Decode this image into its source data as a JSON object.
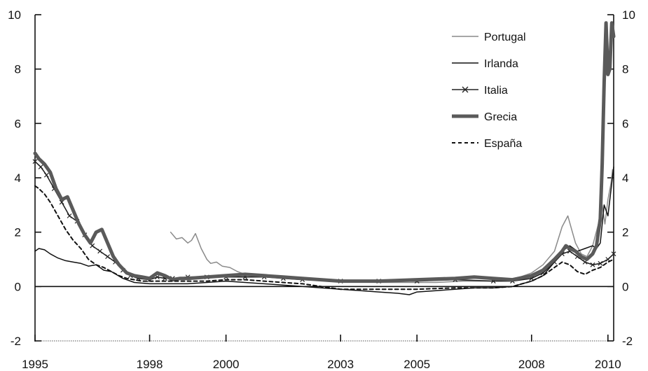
{
  "chart_data": {
    "type": "line",
    "title": "",
    "xlabel": "",
    "ylabel": "",
    "xlim": [
      1995.0,
      2010.15
    ],
    "ylim": [
      -2,
      10
    ],
    "grid": false,
    "legend_position": "top-right",
    "x_tick_values": [
      1995,
      1998,
      2000,
      2003,
      2005,
      2008,
      2010
    ],
    "x_tick_labels": [
      "1995",
      "1998",
      "2000",
      "2003",
      "2005",
      "2008",
      "2010"
    ],
    "y_ticks": [
      -2,
      0,
      2,
      4,
      6,
      8,
      10
    ],
    "y_tick_labels": [
      "-2",
      "0",
      "2",
      "4",
      "6",
      "8",
      "10"
    ],
    "series": [
      {
        "name": "Portugal",
        "color": "#8a8a8a",
        "style": "solid-thin",
        "x": [
          1998.55,
          1998.7,
          1998.85,
          1999.0,
          1999.1,
          1999.2,
          1999.35,
          1999.5,
          1999.6,
          1999.75,
          1999.9,
          2000.1,
          2000.3,
          2000.5,
          2000.8,
          2001.2,
          2001.8,
          2002.5,
          2003.2,
          2004.0,
          2004.8,
          2005.5,
          2006.2,
          2007.0,
          2007.6,
          2008.0,
          2008.3,
          2008.6,
          2008.8,
          2008.95,
          2009.05,
          2009.15,
          2009.3,
          2009.45,
          2009.6,
          2009.75,
          2009.85,
          2009.92,
          2010.0,
          2010.08,
          2010.12
        ],
        "y": [
          2.0,
          1.75,
          1.8,
          1.6,
          1.7,
          1.95,
          1.4,
          1.0,
          0.85,
          0.9,
          0.75,
          0.7,
          0.55,
          0.45,
          0.4,
          0.35,
          0.3,
          0.25,
          0.2,
          0.15,
          0.15,
          0.15,
          0.2,
          0.2,
          0.3,
          0.5,
          0.8,
          1.3,
          2.2,
          2.6,
          2.1,
          1.6,
          1.2,
          1.1,
          1.5,
          2.3,
          3.0,
          2.3,
          3.2,
          3.8,
          4.3
        ]
      },
      {
        "name": "Irlanda",
        "color": "#111111",
        "style": "solid-thin",
        "x": [
          1995.0,
          1995.1,
          1995.25,
          1995.4,
          1995.6,
          1995.8,
          1996.0,
          1996.2,
          1996.4,
          1996.6,
          1996.8,
          1997.0,
          1997.3,
          1997.6,
          1998.0,
          1998.5,
          1999.0,
          1999.5,
          2000.0,
          2000.5,
          2001.0,
          2002.0,
          2003.0,
          2004.0,
          2004.5,
          2004.8,
          2005.0,
          2005.5,
          2006.0,
          2006.5,
          2007.0,
          2007.5,
          2008.0,
          2008.3,
          2008.6,
          2008.8,
          2009.0,
          2009.2,
          2009.4,
          2009.6,
          2009.7,
          2009.8,
          2009.9,
          2010.0,
          2010.1,
          2010.15
        ],
        "y": [
          1.3,
          1.4,
          1.35,
          1.2,
          1.05,
          0.95,
          0.9,
          0.85,
          0.75,
          0.8,
          0.6,
          0.55,
          0.3,
          0.15,
          0.1,
          0.1,
          0.1,
          0.15,
          0.2,
          0.15,
          0.1,
          0.0,
          -0.1,
          -0.2,
          -0.25,
          -0.3,
          -0.2,
          -0.15,
          -0.1,
          -0.05,
          -0.05,
          0.0,
          0.2,
          0.4,
          0.9,
          1.3,
          1.5,
          1.3,
          1.4,
          1.5,
          1.4,
          1.6,
          3.0,
          2.6,
          3.8,
          4.4
        ]
      },
      {
        "name": "Italia",
        "color": "#222222",
        "style": "marker-x",
        "x": [
          1995.0,
          1995.15,
          1995.3,
          1995.5,
          1995.7,
          1995.9,
          1996.1,
          1996.3,
          1996.5,
          1996.7,
          1996.9,
          1997.1,
          1997.3,
          1997.5,
          1997.7,
          1998.0,
          1998.2,
          1998.4,
          1998.6,
          1999.0,
          1999.5,
          2000.0,
          2000.5,
          2001.0,
          2001.5,
          2002.0,
          2003.0,
          2004.0,
          2005.0,
          2006.0,
          2007.0,
          2007.5,
          2008.0,
          2008.3,
          2008.6,
          2008.8,
          2009.0,
          2009.2,
          2009.4,
          2009.6,
          2009.8,
          2010.0,
          2010.15
        ],
        "y": [
          4.6,
          4.4,
          4.1,
          3.6,
          3.1,
          2.6,
          2.4,
          1.9,
          1.5,
          1.3,
          1.1,
          0.9,
          0.6,
          0.4,
          0.3,
          0.25,
          0.35,
          0.3,
          0.3,
          0.35,
          0.35,
          0.35,
          0.35,
          0.35,
          0.3,
          0.25,
          0.2,
          0.2,
          0.2,
          0.25,
          0.2,
          0.2,
          0.3,
          0.5,
          0.9,
          1.2,
          1.3,
          1.1,
          0.9,
          0.8,
          0.85,
          1.0,
          1.2
        ]
      },
      {
        "name": "Grecia",
        "color": "#5a5a5a",
        "style": "solid-thick",
        "x": [
          1995.0,
          1995.1,
          1995.25,
          1995.4,
          1995.55,
          1995.7,
          1995.85,
          1996.0,
          1996.15,
          1996.3,
          1996.45,
          1996.6,
          1996.75,
          1996.9,
          1997.05,
          1997.2,
          1997.4,
          1997.6,
          1997.8,
          1998.0,
          1998.2,
          1998.4,
          1998.6,
          1998.8,
          1999.0,
          1999.5,
          2000.0,
          2000.5,
          2001.0,
          2001.5,
          2002.0,
          2003.0,
          2004.0,
          2005.0,
          2006.0,
          2006.5,
          2007.0,
          2007.5,
          2008.0,
          2008.3,
          2008.6,
          2008.8,
          2008.9,
          2009.0,
          2009.15,
          2009.3,
          2009.45,
          2009.6,
          2009.7,
          2009.8,
          2009.85,
          2009.9,
          2009.95,
          2010.0,
          2010.05,
          2010.1,
          2010.15
        ],
        "y": [
          4.9,
          4.7,
          4.5,
          4.2,
          3.6,
          3.2,
          3.3,
          2.8,
          2.3,
          1.9,
          1.6,
          2.0,
          2.1,
          1.6,
          1.1,
          0.8,
          0.5,
          0.4,
          0.35,
          0.3,
          0.5,
          0.4,
          0.25,
          0.3,
          0.3,
          0.35,
          0.4,
          0.45,
          0.4,
          0.35,
          0.3,
          0.2,
          0.2,
          0.25,
          0.3,
          0.35,
          0.3,
          0.25,
          0.4,
          0.6,
          1.0,
          1.3,
          1.5,
          1.4,
          1.3,
          1.1,
          1.0,
          1.2,
          1.5,
          2.5,
          4.5,
          7.5,
          9.7,
          7.8,
          8.0,
          9.7,
          9.2
        ]
      },
      {
        "name": "España",
        "color": "#111111",
        "style": "dashed",
        "x": [
          1995.0,
          1995.1,
          1995.25,
          1995.4,
          1995.6,
          1995.8,
          1996.0,
          1996.2,
          1996.4,
          1996.6,
          1996.8,
          1997.0,
          1997.2,
          1997.4,
          1997.6,
          1997.8,
          1998.0,
          1998.5,
          1999.0,
          1999.5,
          2000.0,
          2000.5,
          2001.0,
          2002.0,
          2003.0,
          2004.0,
          2005.0,
          2006.0,
          2007.0,
          2007.5,
          2008.0,
          2008.3,
          2008.6,
          2008.8,
          2009.0,
          2009.2,
          2009.4,
          2009.6,
          2009.8,
          2010.0,
          2010.15
        ],
        "y": [
          3.7,
          3.6,
          3.4,
          3.1,
          2.6,
          2.1,
          1.7,
          1.4,
          1.0,
          0.8,
          0.7,
          0.55,
          0.4,
          0.3,
          0.25,
          0.2,
          0.2,
          0.2,
          0.2,
          0.2,
          0.25,
          0.25,
          0.2,
          0.1,
          -0.1,
          -0.1,
          -0.1,
          -0.05,
          -0.05,
          0.0,
          0.2,
          0.4,
          0.7,
          0.9,
          0.8,
          0.55,
          0.45,
          0.6,
          0.7,
          0.9,
          1.0
        ]
      }
    ]
  }
}
